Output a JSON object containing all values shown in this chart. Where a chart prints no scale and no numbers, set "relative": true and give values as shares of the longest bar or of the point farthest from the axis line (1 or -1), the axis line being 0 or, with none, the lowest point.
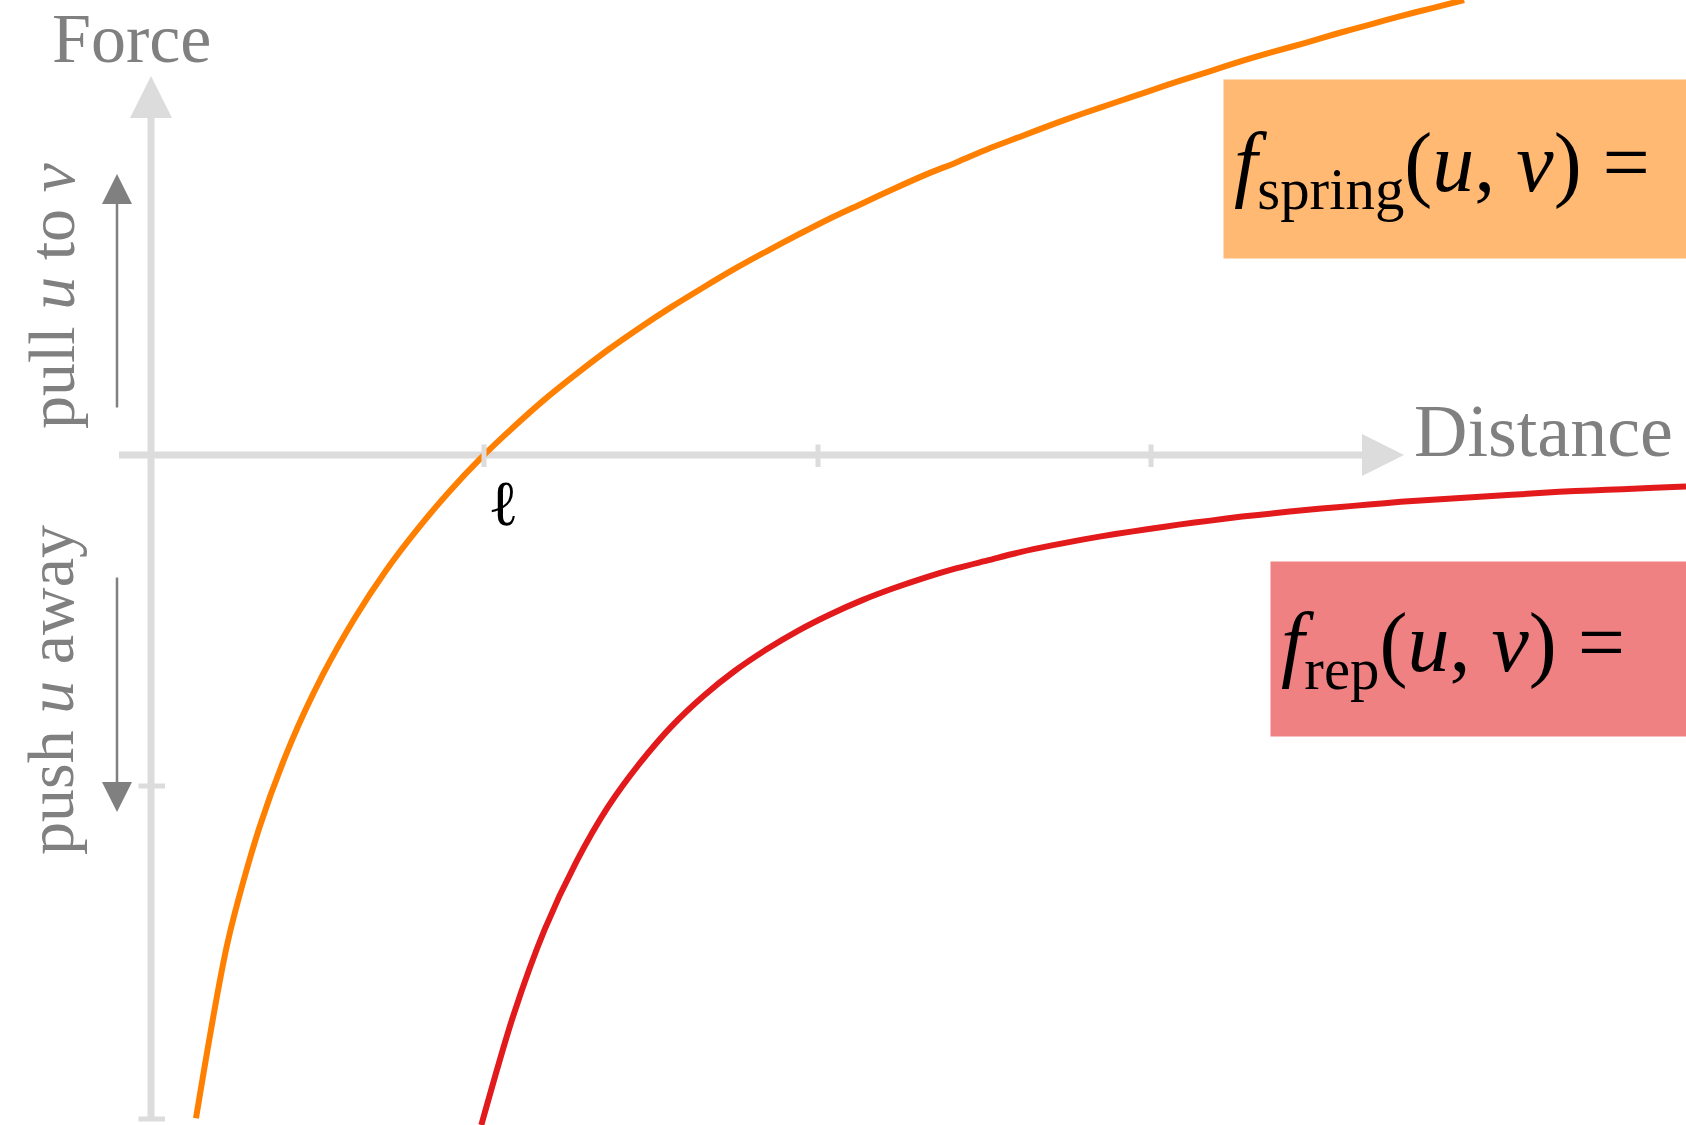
{
  "chart_data": {
    "type": "line",
    "relative": true,
    "xlabel": "Distance",
    "ylabel": "Force",
    "categories": [
      null,
      null,
      null,
      null,
      null,
      null,
      null,
      null,
      null,
      null,
      null,
      null,
      null,
      null,
      null,
      null,
      null,
      null,
      null,
      null,
      null,
      null,
      null,
      null,
      null,
      null,
      null,
      null,
      null,
      null,
      null,
      null,
      null,
      null,
      null,
      null,
      null,
      null,
      null,
      null,
      null,
      null,
      null,
      null,
      null,
      null,
      null,
      null
    ],
    "annotations": [
      "pull u to v",
      "push u away",
      "ℓ",
      "f$_{spring}$(u, v) =",
      "f$_{rep}$(u, v) ="
    ],
    "ref_lines": [
      {
        "axis": "y",
        "value": 0,
        "color": "#dcdcdc"
      }
    ],
    "series": [
      {
        "color": "#ff7f00",
        "values": [
          -0.99,
          -0.727,
          -0.556,
          -0.429,
          -0.328,
          -0.244,
          -0.172,
          -0.11,
          -0.054,
          -0.004,
          0.041,
          0.083,
          0.121,
          0.157,
          0.19,
          0.221,
          0.25,
          0.278,
          0.304,
          0.329,
          0.353,
          0.375,
          0.397,
          0.418,
          0.437,
          0.457,
          0.475,
          0.493,
          0.51,
          0.526,
          0.542,
          0.558,
          0.573,
          0.588,
          0.602,
          0.615,
          0.629,
          0.642,
          0.655,
          0.667,
          0.679,
          null,
          null,
          null,
          null,
          null,
          null,
          null
        ]
      },
      {
        "color": "#e31a1c",
        "values": [
          null,
          null,
          null,
          null,
          null,
          null,
          null,
          null,
          null,
          -1.0,
          -0.838,
          -0.708,
          -0.607,
          -0.525,
          -0.46,
          -0.405,
          -0.36,
          -0.322,
          -0.29,
          -0.262,
          -0.238,
          -0.217,
          -0.199,
          -0.183,
          -0.169,
          -0.157,
          -0.145,
          -0.135,
          -0.126,
          -0.118,
          -0.111,
          -0.104,
          -0.098,
          -0.092,
          -0.087,
          -0.082,
          -0.078,
          -0.074,
          -0.07,
          -0.067,
          -0.064,
          -0.061,
          -0.058,
          -0.055,
          -0.053,
          -0.051,
          -0.049,
          -0.047
        ]
      }
    ]
  }
}
